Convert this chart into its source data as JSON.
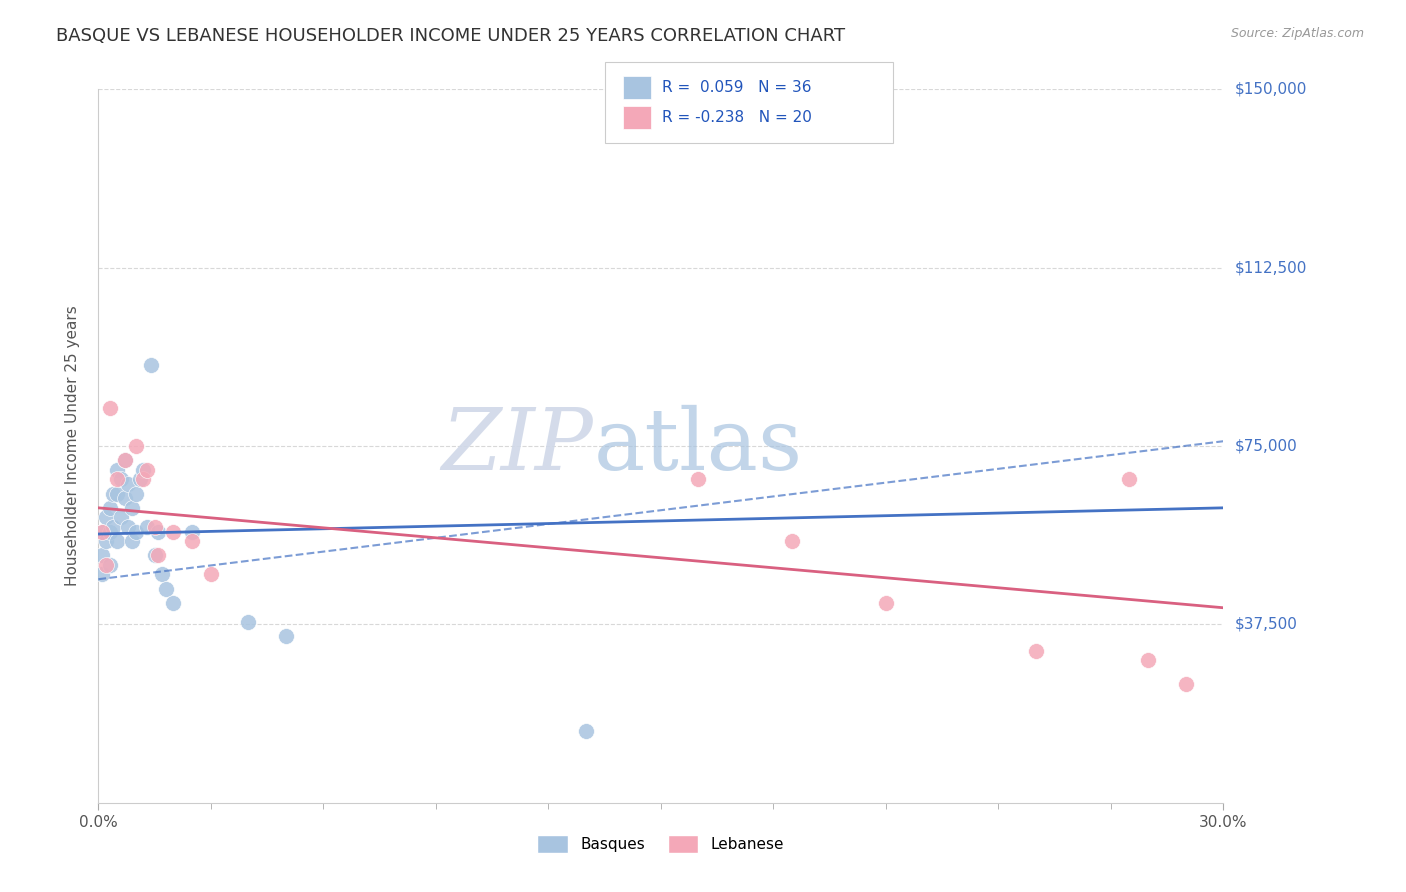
{
  "title": "BASQUE VS LEBANESE HOUSEHOLDER INCOME UNDER 25 YEARS CORRELATION CHART",
  "source": "Source: ZipAtlas.com",
  "ylabel": "Householder Income Under 25 years",
  "xlim": [
    0.0,
    0.3
  ],
  "ylim": [
    0,
    150000
  ],
  "ytick_labels": [
    "$37,500",
    "$75,000",
    "$112,500",
    "$150,000"
  ],
  "ytick_values": [
    37500,
    75000,
    112500,
    150000
  ],
  "xtick_labels": [
    "0.0%",
    "30.0%"
  ],
  "basque_color": "#a8c4e0",
  "lebanese_color": "#f4a8b8",
  "basque_line_color": "#4472c4",
  "lebanese_line_color": "#d96080",
  "basque_R": 0.059,
  "basque_N": 36,
  "lebanese_R": -0.238,
  "lebanese_N": 20,
  "legend_label_basque": "Basques",
  "legend_label_lebanese": "Lebanese",
  "watermark_zip": "ZIP",
  "watermark_atlas": "atlas",
  "title_fontsize": 13,
  "axis_label_fontsize": 11,
  "tick_fontsize": 11,
  "marker_size": 130,
  "background_color": "#ffffff",
  "grid_color": "#d8d8d8",
  "basque_x": [
    0.001,
    0.001,
    0.001,
    0.002,
    0.002,
    0.003,
    0.003,
    0.003,
    0.004,
    0.004,
    0.005,
    0.005,
    0.005,
    0.006,
    0.006,
    0.007,
    0.007,
    0.008,
    0.008,
    0.009,
    0.009,
    0.01,
    0.01,
    0.011,
    0.012,
    0.013,
    0.014,
    0.015,
    0.016,
    0.017,
    0.018,
    0.02,
    0.025,
    0.04,
    0.05,
    0.13
  ],
  "basque_y": [
    57000,
    52000,
    48000,
    60000,
    55000,
    62000,
    57000,
    50000,
    65000,
    58000,
    70000,
    65000,
    55000,
    68000,
    60000,
    72000,
    64000,
    67000,
    58000,
    62000,
    55000,
    65000,
    57000,
    68000,
    70000,
    58000,
    92000,
    52000,
    57000,
    48000,
    45000,
    42000,
    57000,
    38000,
    35000,
    15000
  ],
  "lebanese_x": [
    0.001,
    0.002,
    0.003,
    0.005,
    0.007,
    0.01,
    0.012,
    0.013,
    0.015,
    0.016,
    0.02,
    0.025,
    0.03,
    0.16,
    0.185,
    0.21,
    0.25,
    0.275,
    0.28,
    0.29
  ],
  "lebanese_y": [
    57000,
    50000,
    83000,
    68000,
    72000,
    75000,
    68000,
    70000,
    58000,
    52000,
    57000,
    55000,
    48000,
    68000,
    55000,
    42000,
    32000,
    68000,
    30000,
    25000
  ],
  "basque_line_x0": 0.0,
  "basque_line_y0": 56500,
  "basque_line_x1": 0.3,
  "basque_line_y1": 62000,
  "lebanese_line_x0": 0.0,
  "lebanese_line_y0": 62000,
  "lebanese_line_x1": 0.3,
  "lebanese_line_y1": 41000,
  "dashed_line_x0": 0.0,
  "dashed_line_y0": 47000,
  "dashed_line_x1": 0.3,
  "dashed_line_y1": 76000
}
